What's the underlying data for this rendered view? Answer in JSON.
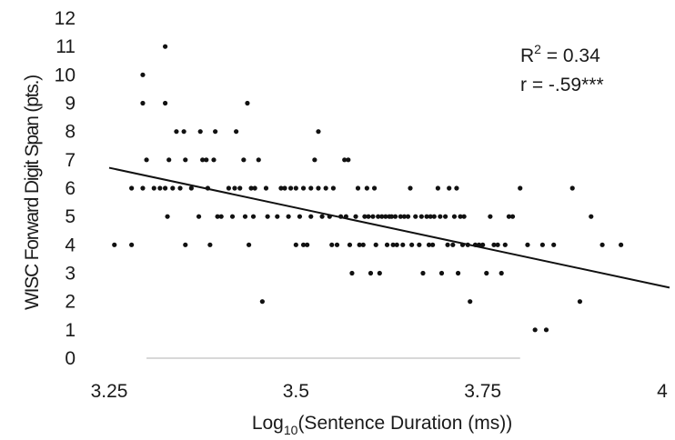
{
  "chart_data": {
    "type": "scatter",
    "title": "",
    "xlabel": "Log10(Sentence Duration (ms))",
    "xlabel_parts": {
      "prefix": "Log",
      "subscript": "10",
      "suffix": "(Sentence Duration (ms))"
    },
    "ylabel": "WISC Forward Digit Span (pts.)",
    "xlim": [
      3.25,
      4
    ],
    "ylim": [
      0,
      12
    ],
    "x_ticks": [
      "3.25",
      "3.5",
      "3.75",
      "4"
    ],
    "y_ticks": [
      "0",
      "1",
      "2",
      "3",
      "4",
      "5",
      "6",
      "7",
      "8",
      "9",
      "10",
      "11",
      "12"
    ],
    "grid": false,
    "annotations": {
      "r2_label": "R",
      "r2_sup": "2",
      "r2_value": " = 0.34",
      "r_text": "r = -.59***"
    },
    "trendline": {
      "x": [
        3.25,
        4.0
      ],
      "y": [
        6.72,
        2.49
      ]
    },
    "points": [
      [
        3.257,
        4
      ],
      [
        3.28,
        4
      ],
      [
        3.28,
        6
      ],
      [
        3.295,
        6
      ],
      [
        3.295,
        9
      ],
      [
        3.295,
        10
      ],
      [
        3.3,
        7
      ],
      [
        3.31,
        6
      ],
      [
        3.318,
        6
      ],
      [
        3.325,
        6
      ],
      [
        3.325,
        9
      ],
      [
        3.325,
        11
      ],
      [
        3.328,
        5
      ],
      [
        3.33,
        7
      ],
      [
        3.335,
        6
      ],
      [
        3.34,
        8
      ],
      [
        3.345,
        6
      ],
      [
        3.35,
        8
      ],
      [
        3.352,
        7
      ],
      [
        3.352,
        4
      ],
      [
        3.36,
        6
      ],
      [
        3.37,
        5
      ],
      [
        3.372,
        8
      ],
      [
        3.375,
        7
      ],
      [
        3.38,
        7
      ],
      [
        3.382,
        6
      ],
      [
        3.385,
        4
      ],
      [
        3.39,
        7
      ],
      [
        3.392,
        8
      ],
      [
        3.395,
        5
      ],
      [
        3.4,
        5
      ],
      [
        3.41,
        6
      ],
      [
        3.415,
        5
      ],
      [
        3.418,
        6
      ],
      [
        3.42,
        8
      ],
      [
        3.425,
        6
      ],
      [
        3.43,
        7
      ],
      [
        3.432,
        5
      ],
      [
        3.435,
        9
      ],
      [
        3.437,
        4
      ],
      [
        3.44,
        6
      ],
      [
        3.443,
        5
      ],
      [
        3.445,
        6
      ],
      [
        3.45,
        7
      ],
      [
        3.455,
        2
      ],
      [
        3.46,
        6
      ],
      [
        3.462,
        5
      ],
      [
        3.475,
        5
      ],
      [
        3.48,
        6
      ],
      [
        3.485,
        6
      ],
      [
        3.49,
        5
      ],
      [
        3.493,
        6
      ],
      [
        3.5,
        6
      ],
      [
        3.5,
        4
      ],
      [
        3.505,
        5
      ],
      [
        3.51,
        6
      ],
      [
        3.51,
        4
      ],
      [
        3.515,
        4
      ],
      [
        3.52,
        5
      ],
      [
        3.52,
        6
      ],
      [
        3.525,
        7
      ],
      [
        3.53,
        6
      ],
      [
        3.53,
        8
      ],
      [
        3.535,
        5
      ],
      [
        3.54,
        6
      ],
      [
        3.545,
        5
      ],
      [
        3.548,
        4
      ],
      [
        3.55,
        6
      ],
      [
        3.555,
        4
      ],
      [
        3.56,
        5
      ],
      [
        3.565,
        7
      ],
      [
        3.567,
        5
      ],
      [
        3.57,
        7
      ],
      [
        3.572,
        4
      ],
      [
        3.575,
        3
      ],
      [
        3.58,
        5
      ],
      [
        3.583,
        6
      ],
      [
        3.585,
        4
      ],
      [
        3.59,
        4
      ],
      [
        3.592,
        5
      ],
      [
        3.595,
        6
      ],
      [
        3.597,
        5
      ],
      [
        3.6,
        3
      ],
      [
        3.603,
        5
      ],
      [
        3.605,
        6
      ],
      [
        3.607,
        4
      ],
      [
        3.61,
        5
      ],
      [
        3.612,
        3
      ],
      [
        3.615,
        5
      ],
      [
        3.62,
        5
      ],
      [
        3.622,
        4
      ],
      [
        3.625,
        5
      ],
      [
        3.628,
        5
      ],
      [
        3.63,
        4
      ],
      [
        3.633,
        5
      ],
      [
        3.635,
        4
      ],
      [
        3.64,
        5
      ],
      [
        3.643,
        4
      ],
      [
        3.645,
        5
      ],
      [
        3.65,
        5
      ],
      [
        3.653,
        6
      ],
      [
        3.655,
        4
      ],
      [
        3.66,
        5
      ],
      [
        3.665,
        4
      ],
      [
        3.668,
        5
      ],
      [
        3.67,
        3
      ],
      [
        3.675,
        5
      ],
      [
        3.678,
        4
      ],
      [
        3.68,
        5
      ],
      [
        3.683,
        4
      ],
      [
        3.685,
        5
      ],
      [
        3.69,
        6
      ],
      [
        3.693,
        5
      ],
      [
        3.695,
        3
      ],
      [
        3.7,
        5
      ],
      [
        3.703,
        4
      ],
      [
        3.705,
        6
      ],
      [
        3.71,
        4
      ],
      [
        3.712,
        5
      ],
      [
        3.715,
        6
      ],
      [
        3.717,
        3
      ],
      [
        3.72,
        5
      ],
      [
        3.723,
        4
      ],
      [
        3.725,
        5
      ],
      [
        3.73,
        4
      ],
      [
        3.733,
        2
      ],
      [
        3.74,
        4
      ],
      [
        3.745,
        4
      ],
      [
        3.75,
        4
      ],
      [
        3.755,
        3
      ],
      [
        3.76,
        5
      ],
      [
        3.765,
        4
      ],
      [
        3.77,
        4
      ],
      [
        3.775,
        3
      ],
      [
        3.78,
        4
      ],
      [
        3.785,
        5
      ],
      [
        3.79,
        5
      ],
      [
        3.8,
        6
      ],
      [
        3.81,
        4
      ],
      [
        3.82,
        1
      ],
      [
        3.83,
        4
      ],
      [
        3.835,
        1
      ],
      [
        3.845,
        4
      ],
      [
        3.87,
        6
      ],
      [
        3.88,
        2
      ],
      [
        3.895,
        5
      ],
      [
        3.91,
        4
      ],
      [
        3.935,
        4
      ]
    ]
  }
}
